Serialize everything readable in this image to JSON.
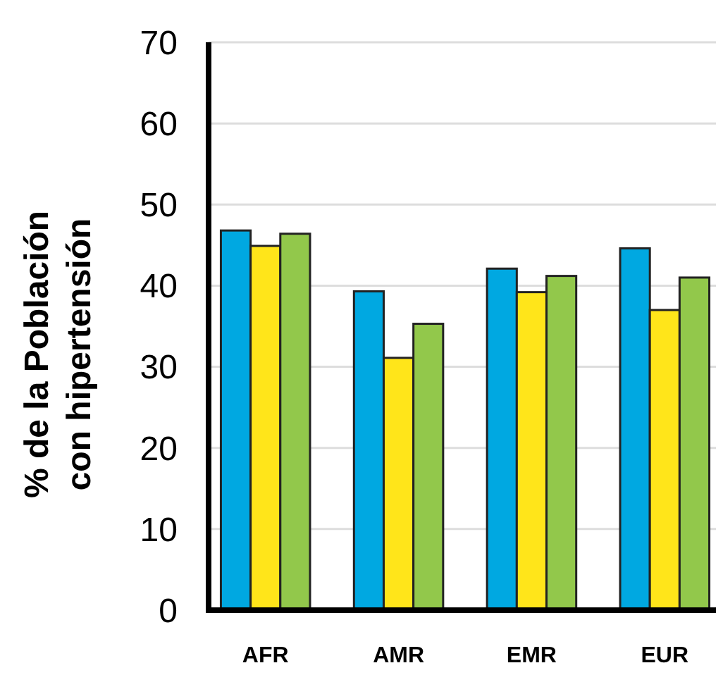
{
  "chart_data": {
    "type": "bar",
    "ylabel": "% de la Población\ncon hipertensión",
    "categories": [
      "AFR",
      "AMR",
      "EMR",
      "EUR"
    ],
    "series": [
      {
        "color": "#00a8e1",
        "values": [
          46.8,
          39.3,
          42.1,
          44.6
        ]
      },
      {
        "color": "#ffe51a",
        "values": [
          44.9,
          31.1,
          39.2,
          37.0
        ]
      },
      {
        "color": "#92c84b",
        "values": [
          46.4,
          35.3,
          41.2,
          41.0
        ]
      }
    ],
    "ylim": [
      0,
      70
    ],
    "yticks": [
      0,
      10,
      20,
      30,
      40,
      50,
      60,
      70
    ],
    "grid": "y"
  }
}
